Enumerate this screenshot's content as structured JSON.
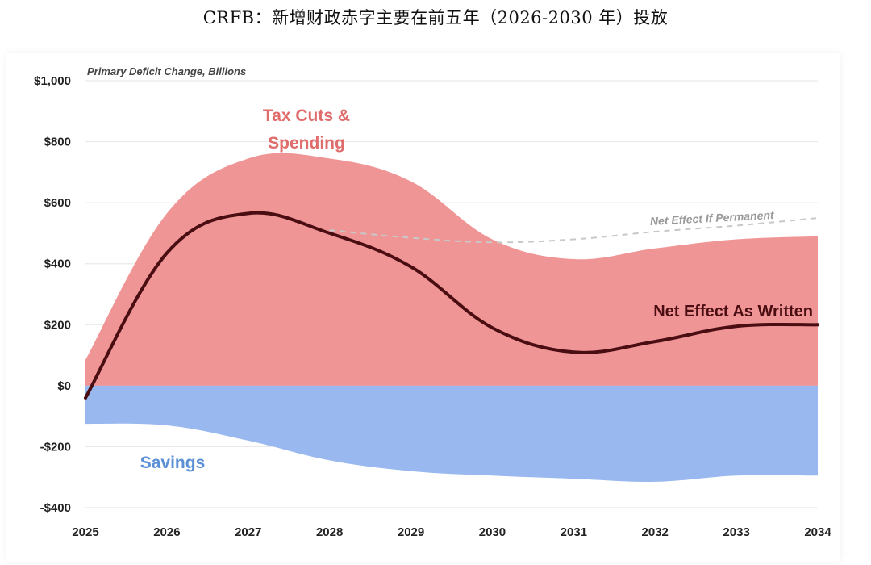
{
  "page": {
    "title": "CRFB：新增财政赤字主要在前五年（2026-2030 年）投放"
  },
  "colors": {
    "cost_fill": "#f09595",
    "savings_fill": "#98b8ef",
    "net_line": "#4a0e12",
    "permanent_line": "#c8c8c8",
    "cost_label": "#e06c6c",
    "savings_label": "#5b8fd6",
    "grid": "#e6e6e6",
    "axis_text": "#222222"
  },
  "chart_data": {
    "type": "area",
    "subtitle": "Primary Deficit Change, Billions",
    "x": [
      "2025",
      "2026",
      "2027",
      "2028",
      "2029",
      "2030",
      "2031",
      "2032",
      "2033",
      "2034"
    ],
    "ylim": [
      -400,
      1000
    ],
    "yticks": [
      1000,
      800,
      600,
      400,
      200,
      0,
      -200,
      -400
    ],
    "ytick_labels": [
      "$1,000",
      "$800",
      "$600",
      "$400",
      "$200",
      "$0",
      "-$200",
      "-$400"
    ],
    "grid": true,
    "series": [
      {
        "name": "Tax Cuts & Spending",
        "kind": "area",
        "values": [
          85,
          565,
          745,
          745,
          670,
          480,
          415,
          450,
          480,
          490
        ]
      },
      {
        "name": "Savings",
        "kind": "area",
        "values": [
          -125,
          -130,
          -180,
          -245,
          -280,
          -295,
          -305,
          -315,
          -295,
          -295
        ]
      },
      {
        "name": "Net Effect As Written",
        "kind": "line",
        "values": [
          -40,
          435,
          565,
          500,
          390,
          190,
          110,
          145,
          195,
          200
        ]
      },
      {
        "name": "Net Effect If Permanent",
        "kind": "dashed-line",
        "values": [
          null,
          null,
          null,
          510,
          485,
          470,
          480,
          505,
          525,
          550
        ]
      }
    ],
    "annotations": {
      "tax_cuts_line1": "Tax Cuts &",
      "tax_cuts_line2": "Spending",
      "savings": "Savings",
      "net_as_written": "Net Effect As Written",
      "net_if_permanent": "Net Effect If Permanent"
    }
  }
}
